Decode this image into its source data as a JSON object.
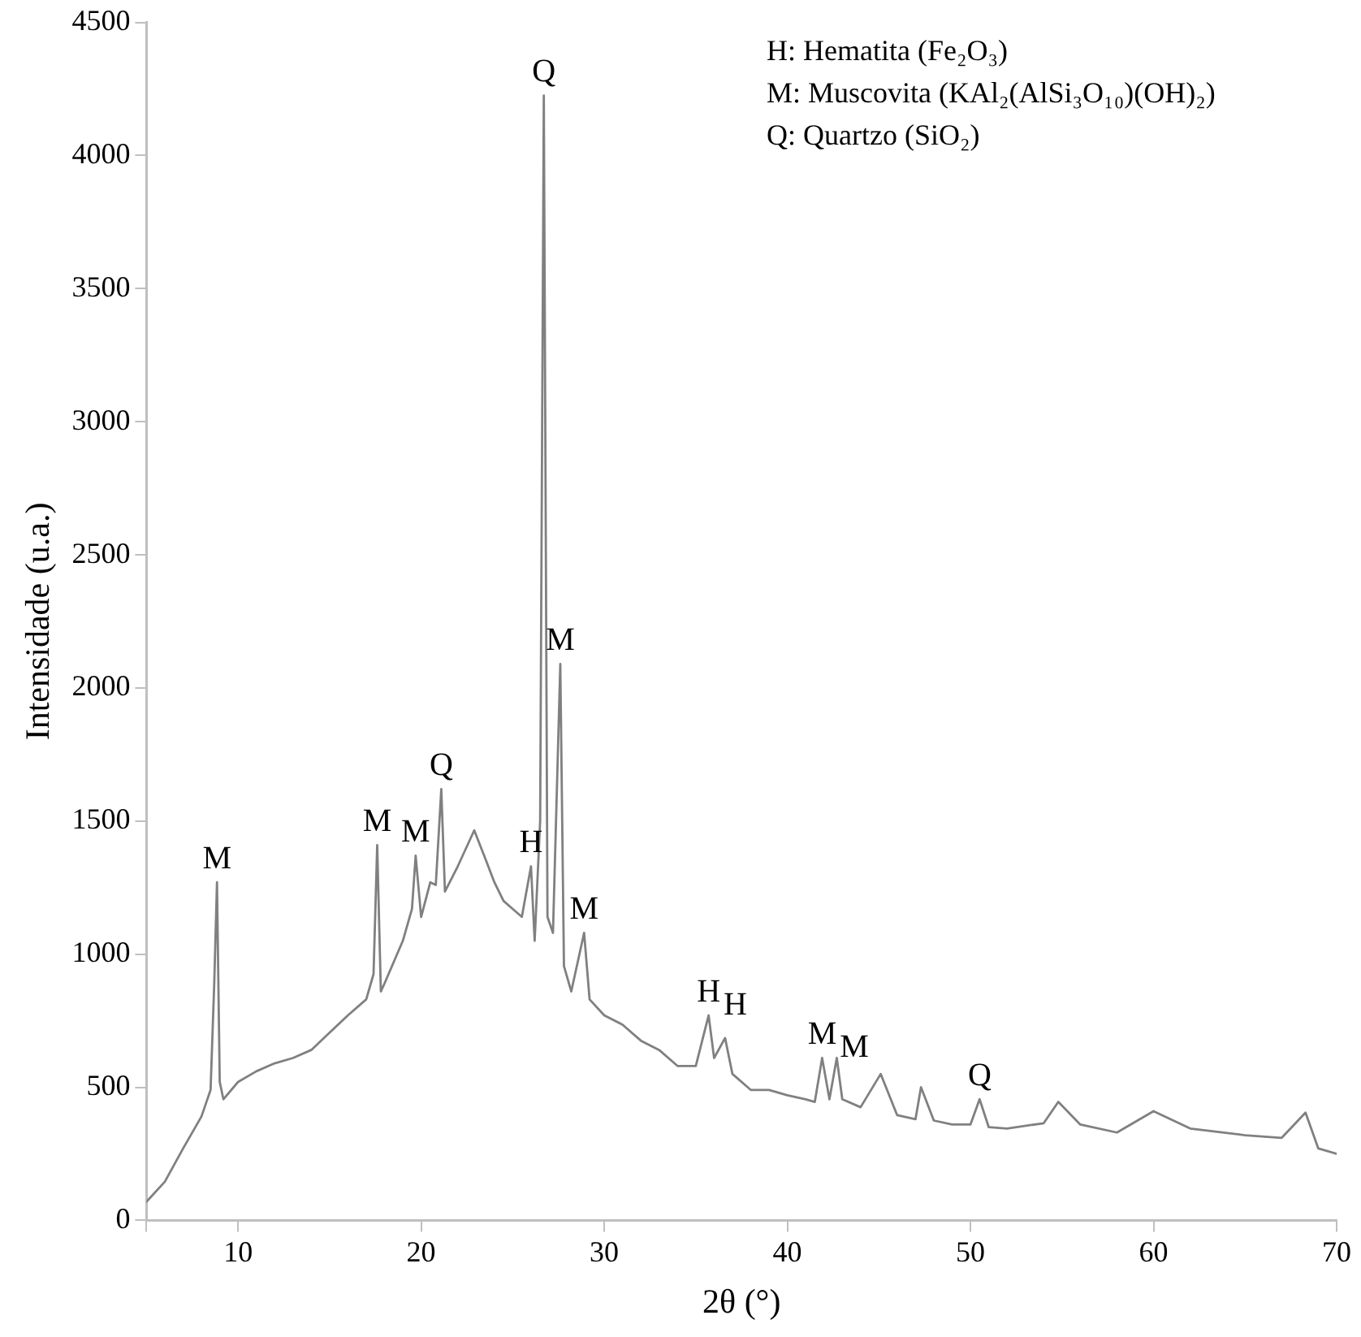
{
  "chart_data": {
    "type": "line",
    "xlabel": "2θ (°)",
    "ylabel": "Intensidade (u.a.)",
    "xlim": [
      5,
      70
    ],
    "xticks": [
      {
        "value": 5,
        "label": null
      },
      10,
      20,
      30,
      40,
      50,
      60,
      70
    ],
    "ylim": [
      0,
      4500
    ],
    "yticks": [
      0,
      500,
      1000,
      1500,
      2000,
      2500,
      3000,
      3500,
      4000,
      4500
    ],
    "grid": false,
    "legend": false,
    "marker": "none",
    "line_style": "solid",
    "series": [
      {
        "color": "#808080",
        "x": [
          5,
          6,
          7,
          8,
          8.5,
          8.7,
          8.85,
          9.0,
          9.2,
          10,
          11,
          12,
          13,
          14,
          15,
          16,
          17,
          17.4,
          17.6,
          17.8,
          18,
          19,
          19.5,
          19.7,
          20.0,
          20.5,
          20.8,
          21.1,
          21.3,
          22,
          22.9,
          23.5,
          24,
          24.5,
          25,
          25.5,
          26.0,
          26.2,
          26.5,
          26.7,
          26.9,
          27.2,
          27.6,
          27.8,
          28.2,
          28.9,
          29.2,
          30,
          31,
          32,
          33,
          34,
          35,
          35.7,
          36,
          36.6,
          37,
          38,
          39,
          40,
          41,
          41.5,
          41.9,
          42.3,
          42.7,
          43,
          44,
          45.1,
          46,
          47,
          47.3,
          48,
          49,
          50,
          50.5,
          51,
          52,
          54,
          54.8,
          56,
          58,
          60,
          62,
          65,
          67,
          68.3,
          69,
          70
        ],
        "values": [
          70,
          145,
          270,
          390,
          490,
          890,
          1270,
          520,
          455,
          520,
          560,
          590,
          610,
          640,
          705,
          770,
          830,
          925,
          1410,
          860,
          890,
          1050,
          1170,
          1370,
          1140,
          1270,
          1260,
          1620,
          1235,
          1330,
          1465,
          1360,
          1270,
          1200,
          1170,
          1140,
          1330,
          1050,
          1500,
          4225,
          1140,
          1080,
          2090,
          955,
          860,
          1080,
          830,
          770,
          735,
          675,
          640,
          580,
          580,
          770,
          610,
          685,
          550,
          490,
          490,
          470,
          455,
          445,
          610,
          455,
          610,
          455,
          425,
          550,
          395,
          380,
          500,
          375,
          360,
          360,
          455,
          350,
          345,
          365,
          445,
          360,
          330,
          410,
          345,
          320,
          310,
          405,
          270,
          250
        ]
      }
    ],
    "annotations": [
      {
        "text": "M",
        "x": 8.85,
        "y": 1270
      },
      {
        "text": "M",
        "x": 17.6,
        "y": 1410
      },
      {
        "text": "M",
        "x": 19.7,
        "y": 1370
      },
      {
        "text": "Q",
        "x": 21.1,
        "y": 1620
      },
      {
        "text": "H",
        "x": 26.0,
        "y": 1330
      },
      {
        "text": "Q",
        "x": 26.7,
        "y": 4225
      },
      {
        "text": "M",
        "x": 27.6,
        "y": 2090
      },
      {
        "text": "M",
        "x": 28.9,
        "y": 1080
      },
      {
        "text": "H",
        "x": 35.7,
        "y": 770
      },
      {
        "text": "H",
        "x": 36.6,
        "y": 685
      },
      {
        "text": "M",
        "x": 41.9,
        "y": 610
      },
      {
        "text": "M",
        "x": 42.7,
        "y": 610
      },
      {
        "text": "Q",
        "x": 50.5,
        "y": 455
      },
      "H: Hematita (Fe₂O₃)",
      "M: Muscovita (KAl₂(AlSi₃O₁₀)(OH)₂)",
      "Q: Quartzo (SiO₂)"
    ]
  }
}
